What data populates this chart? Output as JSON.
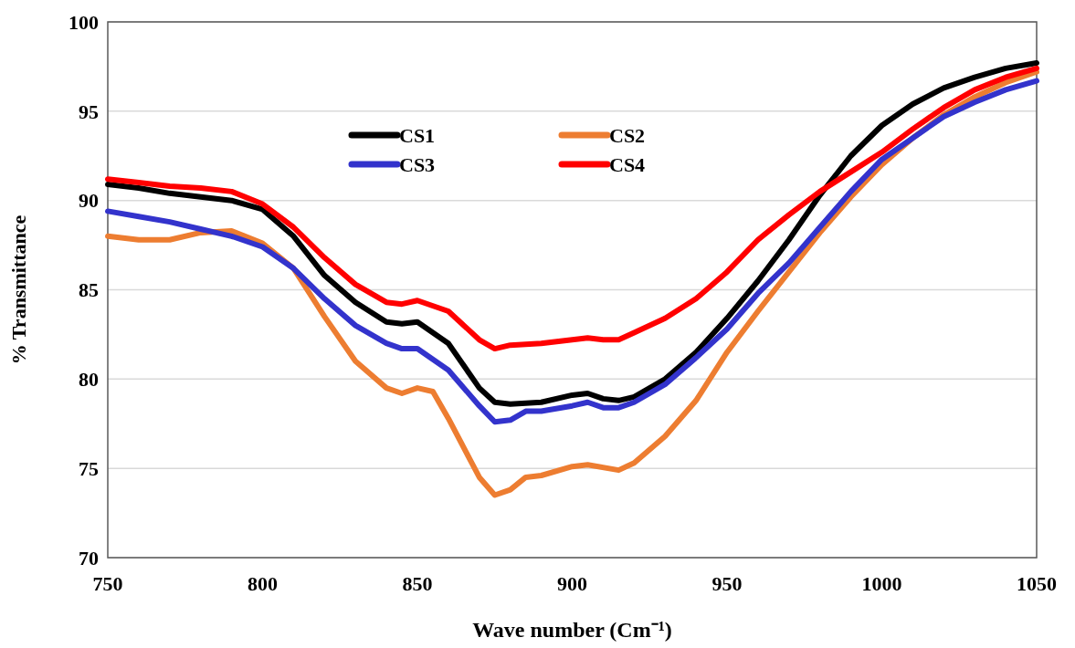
{
  "chart_data": {
    "type": "line",
    "xlabel": "Wave number (Cm⁻¹)",
    "ylabel": "% Transmittance",
    "xlim": [
      750,
      1050
    ],
    "xticks": [
      750,
      800,
      850,
      900,
      950,
      1000,
      1050
    ],
    "ylim": [
      70,
      100
    ],
    "yticks": [
      70,
      75,
      80,
      85,
      90,
      95,
      100
    ],
    "grid": "y",
    "legend": "top",
    "line_style": "solid",
    "series": [
      {
        "name": "CS1",
        "color": "#000000",
        "x": [
          750,
          760,
          770,
          780,
          790,
          800,
          810,
          820,
          830,
          840,
          845,
          850,
          860,
          870,
          875,
          880,
          890,
          900,
          905,
          910,
          915,
          920,
          930,
          940,
          950,
          960,
          970,
          980,
          990,
          1000,
          1010,
          1020,
          1030,
          1040,
          1050
        ],
        "values": [
          90.9,
          90.7,
          90.4,
          90.2,
          90.0,
          89.5,
          88.0,
          85.8,
          84.3,
          83.2,
          83.1,
          83.2,
          82.0,
          79.5,
          78.7,
          78.6,
          78.7,
          79.1,
          79.2,
          78.9,
          78.8,
          79.0,
          80.0,
          81.5,
          83.4,
          85.5,
          87.8,
          90.3,
          92.5,
          94.2,
          95.4,
          96.3,
          96.9,
          97.4,
          97.7
        ]
      },
      {
        "name": "CS2",
        "color": "#ed7d31",
        "x": [
          750,
          760,
          770,
          780,
          790,
          800,
          810,
          820,
          830,
          840,
          845,
          850,
          855,
          860,
          870,
          875,
          880,
          885,
          890,
          900,
          905,
          915,
          920,
          930,
          940,
          950,
          960,
          970,
          980,
          990,
          1000,
          1010,
          1020,
          1030,
          1040,
          1050
        ],
        "values": [
          88.0,
          87.8,
          87.8,
          88.2,
          88.3,
          87.6,
          86.2,
          83.5,
          81.0,
          79.5,
          79.2,
          79.5,
          79.3,
          77.8,
          74.5,
          73.5,
          73.8,
          74.5,
          74.6,
          75.1,
          75.2,
          74.9,
          75.3,
          76.8,
          78.8,
          81.5,
          83.8,
          86.0,
          88.2,
          90.2,
          92.0,
          93.5,
          94.8,
          95.8,
          96.6,
          97.2
        ]
      },
      {
        "name": "CS3",
        "color": "#3333cc",
        "x": [
          750,
          760,
          770,
          780,
          790,
          800,
          810,
          820,
          830,
          840,
          845,
          850,
          860,
          870,
          875,
          880,
          885,
          890,
          900,
          905,
          910,
          915,
          920,
          930,
          940,
          950,
          960,
          970,
          980,
          990,
          1000,
          1010,
          1020,
          1030,
          1040,
          1050
        ],
        "values": [
          89.4,
          89.1,
          88.8,
          88.4,
          88.0,
          87.4,
          86.2,
          84.5,
          83.0,
          82.0,
          81.7,
          81.7,
          80.5,
          78.5,
          77.6,
          77.7,
          78.2,
          78.2,
          78.5,
          78.7,
          78.4,
          78.4,
          78.7,
          79.7,
          81.2,
          82.8,
          84.8,
          86.5,
          88.5,
          90.5,
          92.3,
          93.5,
          94.7,
          95.5,
          96.2,
          96.7
        ]
      },
      {
        "name": "CS4",
        "color": "#ff0000",
        "x": [
          750,
          760,
          770,
          780,
          790,
          800,
          810,
          820,
          830,
          840,
          845,
          850,
          860,
          870,
          875,
          880,
          890,
          900,
          905,
          910,
          915,
          920,
          930,
          940,
          950,
          960,
          970,
          980,
          990,
          1000,
          1010,
          1020,
          1030,
          1040,
          1050
        ],
        "values": [
          91.2,
          91.0,
          90.8,
          90.7,
          90.5,
          89.8,
          88.5,
          86.8,
          85.3,
          84.3,
          84.2,
          84.4,
          83.8,
          82.2,
          81.7,
          81.9,
          82.0,
          82.2,
          82.3,
          82.2,
          82.2,
          82.6,
          83.4,
          84.5,
          86.0,
          87.8,
          89.2,
          90.5,
          91.6,
          92.7,
          94.0,
          95.2,
          96.2,
          96.9,
          97.4
        ]
      }
    ]
  }
}
